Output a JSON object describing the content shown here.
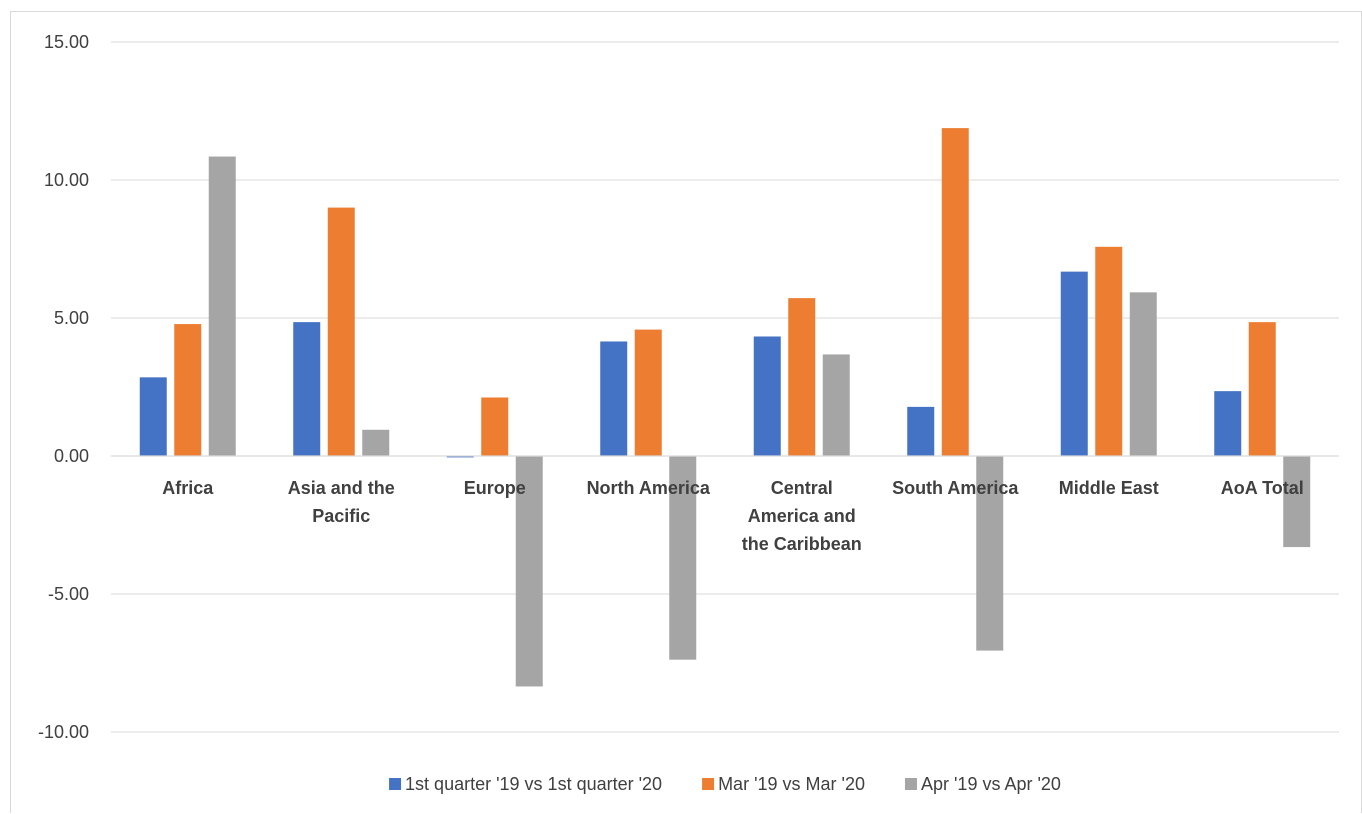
{
  "chart_data": {
    "type": "bar",
    "categories": [
      [
        "Africa"
      ],
      [
        "Asia and the",
        "Pacific"
      ],
      [
        "Europe"
      ],
      [
        "North America"
      ],
      [
        "Central",
        "America and",
        "the Caribbean"
      ],
      [
        "South America"
      ],
      [
        "Middle East"
      ],
      [
        "AoA Total"
      ]
    ],
    "series": [
      {
        "name": "1st quarter '19 vs 1st quarter '20",
        "color": "#4472c4",
        "values": [
          2.85,
          4.85,
          -0.05,
          4.15,
          4.33,
          1.78,
          6.68,
          2.35
        ]
      },
      {
        "name": "Mar '19 vs Mar '20",
        "color": "#ed7d31",
        "values": [
          4.78,
          9.0,
          2.12,
          4.58,
          5.72,
          11.88,
          7.58,
          4.85
        ]
      },
      {
        "name": "Apr '19 vs Apr '20",
        "color": "#a5a5a5",
        "values": [
          10.85,
          0.95,
          -8.35,
          -7.38,
          3.68,
          -7.05,
          5.93,
          -3.3
        ]
      }
    ],
    "ylim": [
      -10,
      15
    ],
    "yticks": [
      "15.00",
      "10.00",
      "5.00",
      "0.00",
      "-5.00",
      "-10.00"
    ],
    "ytick_values": [
      15,
      10,
      5,
      0,
      -5,
      -10
    ],
    "grid": true,
    "legend": "bottom",
    "title": "",
    "xlabel": "",
    "ylabel": ""
  }
}
